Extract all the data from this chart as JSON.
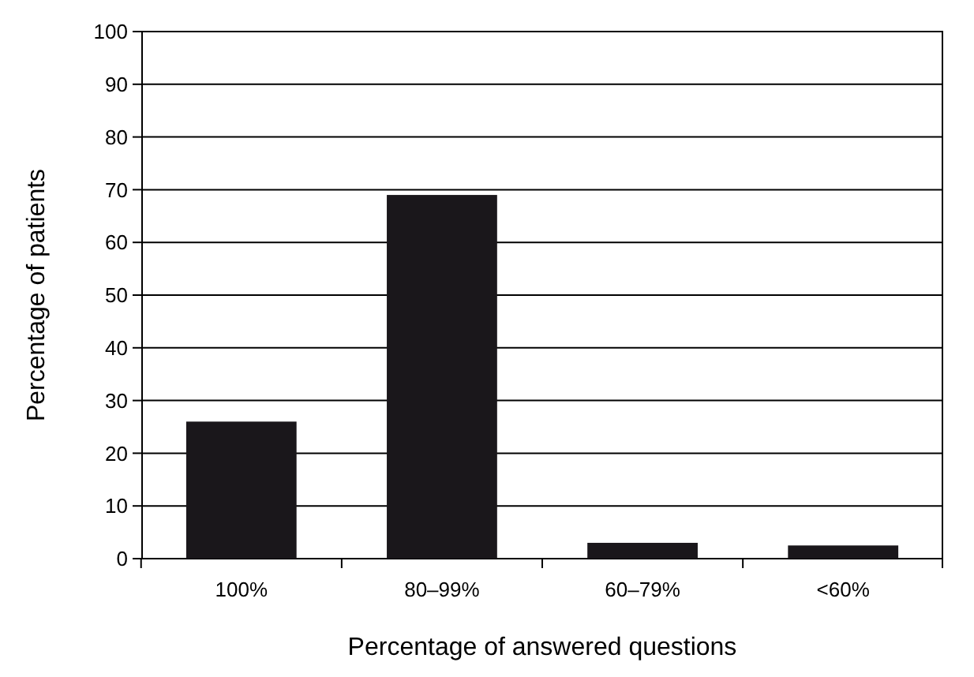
{
  "chart_data": {
    "type": "bar",
    "xlabel": "Percentage of answered questions",
    "ylabel": "Percentage of patients",
    "categories": [
      "100%",
      "80–99%",
      "60–79%",
      "<60%"
    ],
    "values": [
      26,
      69,
      3,
      2.5
    ],
    "color": "#1a171b",
    "ylim": [
      0,
      100
    ],
    "yticks": [
      0,
      10,
      20,
      30,
      40,
      50,
      60,
      70,
      80,
      90,
      100
    ],
    "grid": "y"
  }
}
